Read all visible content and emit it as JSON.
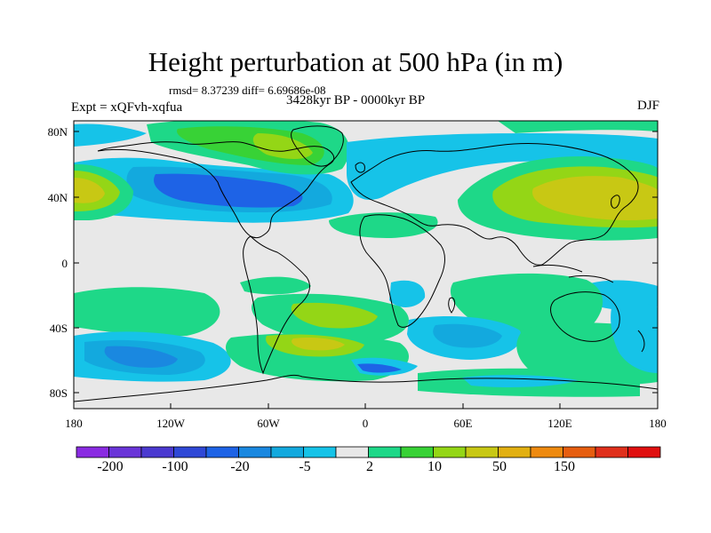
{
  "title": "Height perturbation at 500 hPa (in m)",
  "stats": "rmsd= 8.37239 diff= 6.69686e-08",
  "experiment": "Expt = xQFvh-xqfua",
  "period": "3428kyr BP - 0000kyr BP",
  "season": "DJF",
  "map": {
    "lat_ticks": [
      "80N",
      "40N",
      "0",
      "40S",
      "80S"
    ],
    "lon_ticks": [
      "180",
      "120W",
      "60W",
      "0",
      "60E",
      "120E",
      "180"
    ],
    "ocean_color": "#e8e8e8",
    "coastline_color": "#000000"
  },
  "colorbar": {
    "colors": [
      "#8a2be2",
      "#6a35d8",
      "#4b3ad0",
      "#2f48d6",
      "#1e63e6",
      "#1a88e0",
      "#13a9de",
      "#16c3e8",
      "#e8e8e8",
      "#1ed888",
      "#38d236",
      "#94d616",
      "#c8c814",
      "#e2b012",
      "#ee8a10",
      "#e65e10",
      "#e0301c",
      "#e01010"
    ],
    "labels": [
      "-200",
      "-100",
      "-20",
      "-5",
      "2",
      "10",
      "50",
      "150"
    ]
  }
}
